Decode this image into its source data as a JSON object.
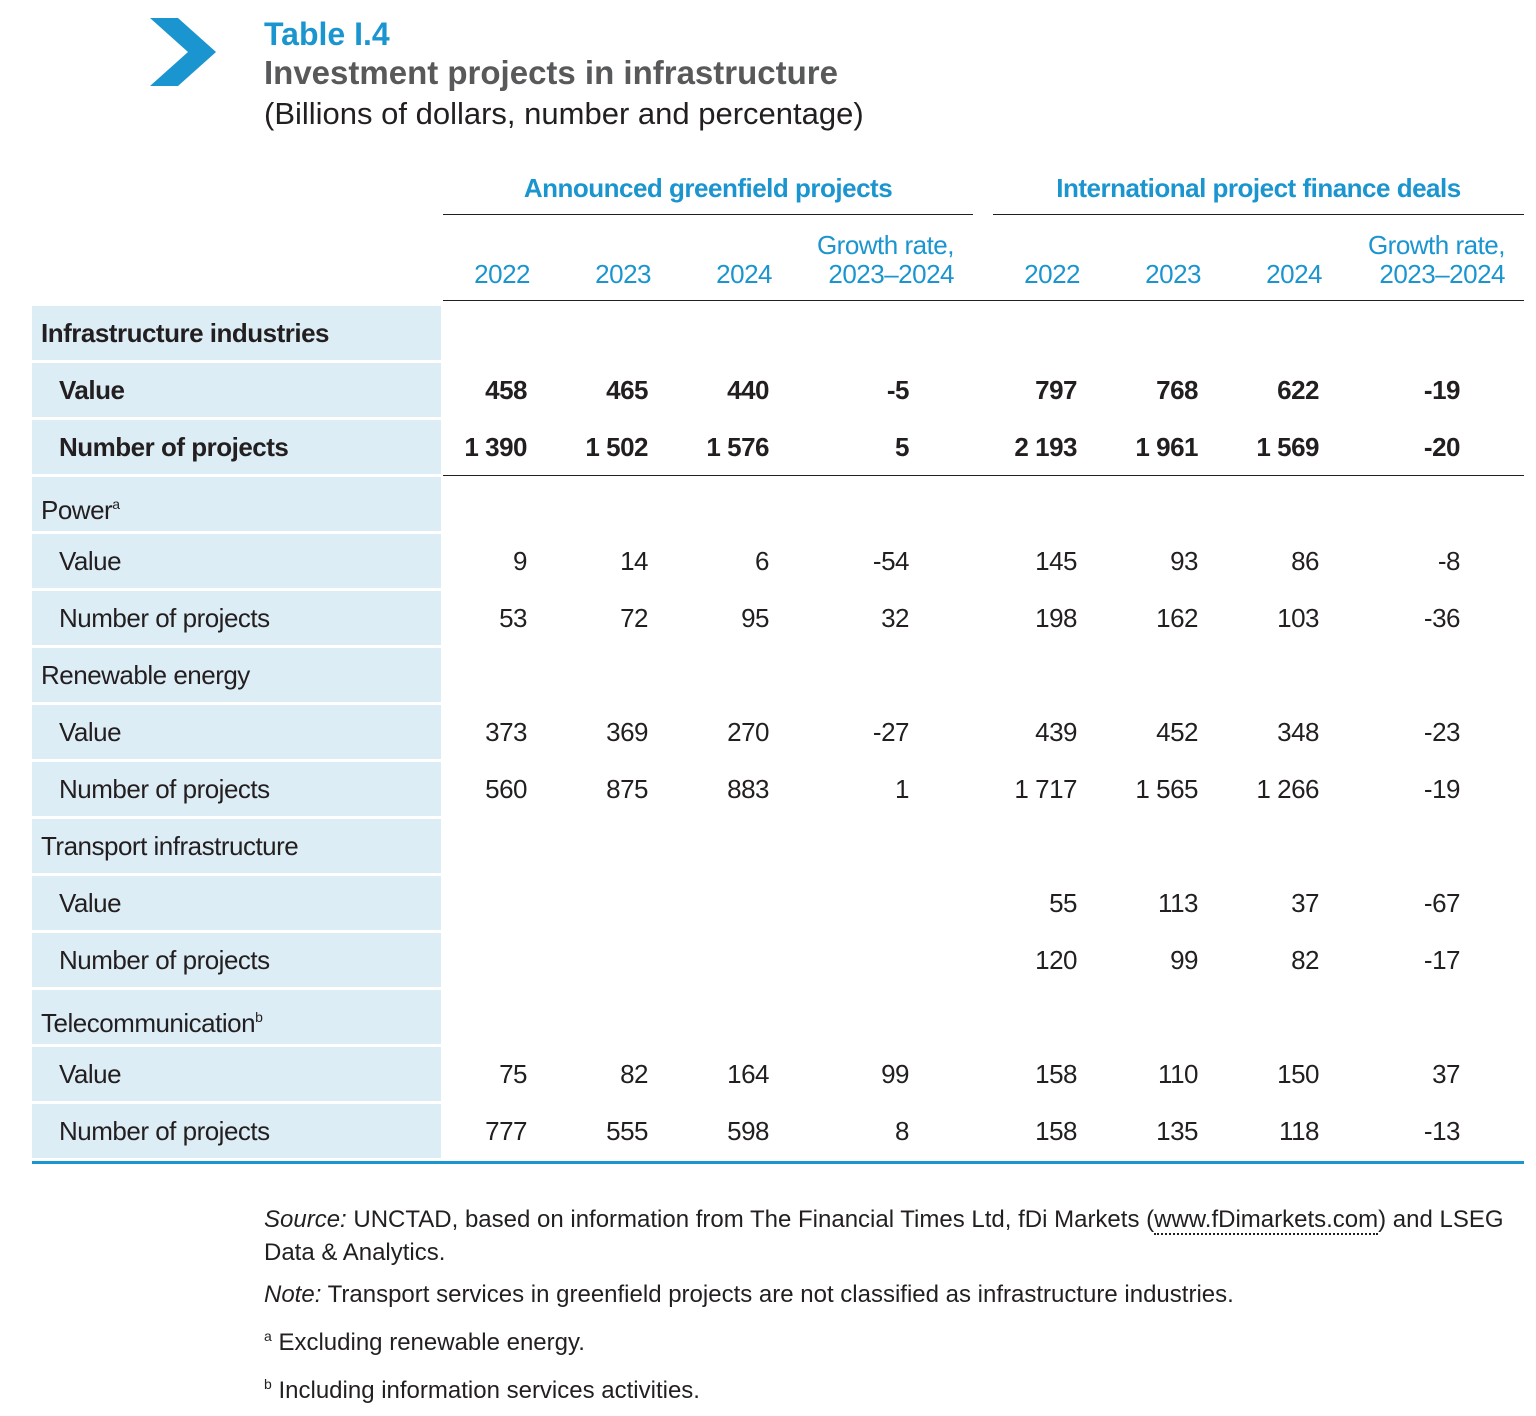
{
  "header": {
    "table_number": "Table I.4",
    "title": "Investment projects in infrastructure",
    "subtitle": "(Billions of dollars, number and percentage)"
  },
  "colors": {
    "accent": "#1b95cf",
    "title_grey": "#58595b",
    "label_bg": "#ddedf6"
  },
  "groups": {
    "greenfield": "Announced greenfield projects",
    "finance": "International project finance deals"
  },
  "columns": {
    "y2022": "2022",
    "y2023": "2023",
    "y2024": "2024",
    "growth_line1": "Growth rate,",
    "growth_line2": "2023–2024"
  },
  "rows": [
    {
      "label": "Infrastructure industries",
      "kind": "section",
      "bold": true,
      "values": []
    },
    {
      "label": "Value",
      "kind": "sub",
      "bold": true,
      "values": [
        "458",
        "465",
        "440",
        "-5",
        "797",
        "768",
        "622",
        "-19"
      ]
    },
    {
      "label": "Number of projects",
      "kind": "sub",
      "bold": true,
      "values": [
        "1 390",
        "1 502",
        "1 576",
        "5",
        "2 193",
        "1 961",
        "1 569",
        "-20"
      ]
    },
    {
      "label": "Power",
      "sup": "a",
      "kind": "cat",
      "bold": false,
      "values": []
    },
    {
      "label": "Value",
      "kind": "sub",
      "bold": false,
      "values": [
        "9",
        "14",
        "6",
        "-54",
        "145",
        "93",
        "86",
        "-8"
      ]
    },
    {
      "label": "Number of projects",
      "kind": "sub",
      "bold": false,
      "values": [
        "53",
        "72",
        "95",
        "32",
        "198",
        "162",
        "103",
        "-36"
      ]
    },
    {
      "label": "Renewable energy",
      "kind": "cat",
      "bold": false,
      "values": []
    },
    {
      "label": "Value",
      "kind": "sub",
      "bold": false,
      "values": [
        "373",
        "369",
        "270",
        "-27",
        "439",
        "452",
        "348",
        "-23"
      ]
    },
    {
      "label": "Number of projects",
      "kind": "sub",
      "bold": false,
      "values": [
        "560",
        "875",
        "883",
        "1",
        "1 717",
        "1 565",
        "1 266",
        "-19"
      ]
    },
    {
      "label": "Transport infrastructure",
      "kind": "cat",
      "bold": false,
      "values": []
    },
    {
      "label": "Value",
      "kind": "sub",
      "bold": false,
      "values": [
        "",
        "",
        "",
        "",
        "55",
        "113",
        "37",
        "-67"
      ]
    },
    {
      "label": "Number of projects",
      "kind": "sub",
      "bold": false,
      "values": [
        "",
        "",
        "",
        "",
        "120",
        "99",
        "82",
        "-17"
      ]
    },
    {
      "label": "Telecommunication",
      "sup": "b",
      "kind": "cat",
      "bold": false,
      "values": []
    },
    {
      "label": "Value",
      "kind": "sub",
      "bold": false,
      "values": [
        "75",
        "82",
        "164",
        "99",
        "158",
        "110",
        "150",
        "37"
      ]
    },
    {
      "label": "Number of projects",
      "kind": "sub",
      "bold": false,
      "values": [
        "777",
        "555",
        "598",
        "8",
        "158",
        "135",
        "118",
        "-13"
      ]
    }
  ],
  "notes": {
    "source_label": "Source:",
    "source_text_1": " UNCTAD, based on information from The Financial Times Ltd, fDi Markets (",
    "source_link": "www.fDimarkets.com",
    "source_text_2": ") and LSEG Data & Analytics.",
    "note_label": "Note:",
    "note_text": " Transport services in greenfield projects are not classified as infrastructure industries.",
    "footnote_a_mark": "a",
    "footnote_a_text": " Excluding renewable energy.",
    "footnote_b_mark": "b",
    "footnote_b_text": " Including information services activities."
  }
}
